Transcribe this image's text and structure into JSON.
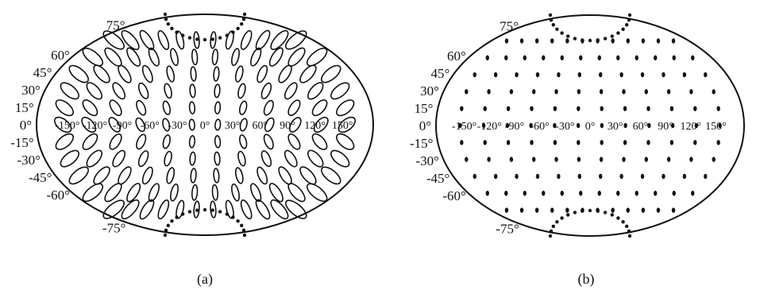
{
  "figure": {
    "panels": [
      {
        "id": "a",
        "caption": "(a)",
        "lat_labels_left": [
          "60°",
          "45°",
          "30°",
          "15°",
          "0°",
          "-15°",
          "-30°",
          "-45°",
          "-60°"
        ],
        "lat_labels_extra": [
          "75°",
          "-75°"
        ],
        "lon_labels": [
          "-150°",
          "-120°",
          "-90°",
          "-60°",
          "-30°",
          "0°",
          "30°",
          "60°",
          "90°",
          "120°",
          "150°"
        ],
        "marker_style": "distorted-ellipses"
      },
      {
        "id": "b",
        "caption": "(b)",
        "lat_labels_left": [
          "60°",
          "45°",
          "30°",
          "15°",
          "0°",
          "-15°",
          "-30°",
          "-45°",
          "-60°"
        ],
        "lat_labels_extra": [
          "75°",
          "-75°"
        ],
        "lon_labels": [
          "-150°",
          "-120°",
          "-90°",
          "-60°",
          "-30°",
          "0°",
          "30°",
          "60°",
          "90°",
          "120°",
          "150°"
        ],
        "marker_style": "uniform-dots"
      }
    ]
  }
}
